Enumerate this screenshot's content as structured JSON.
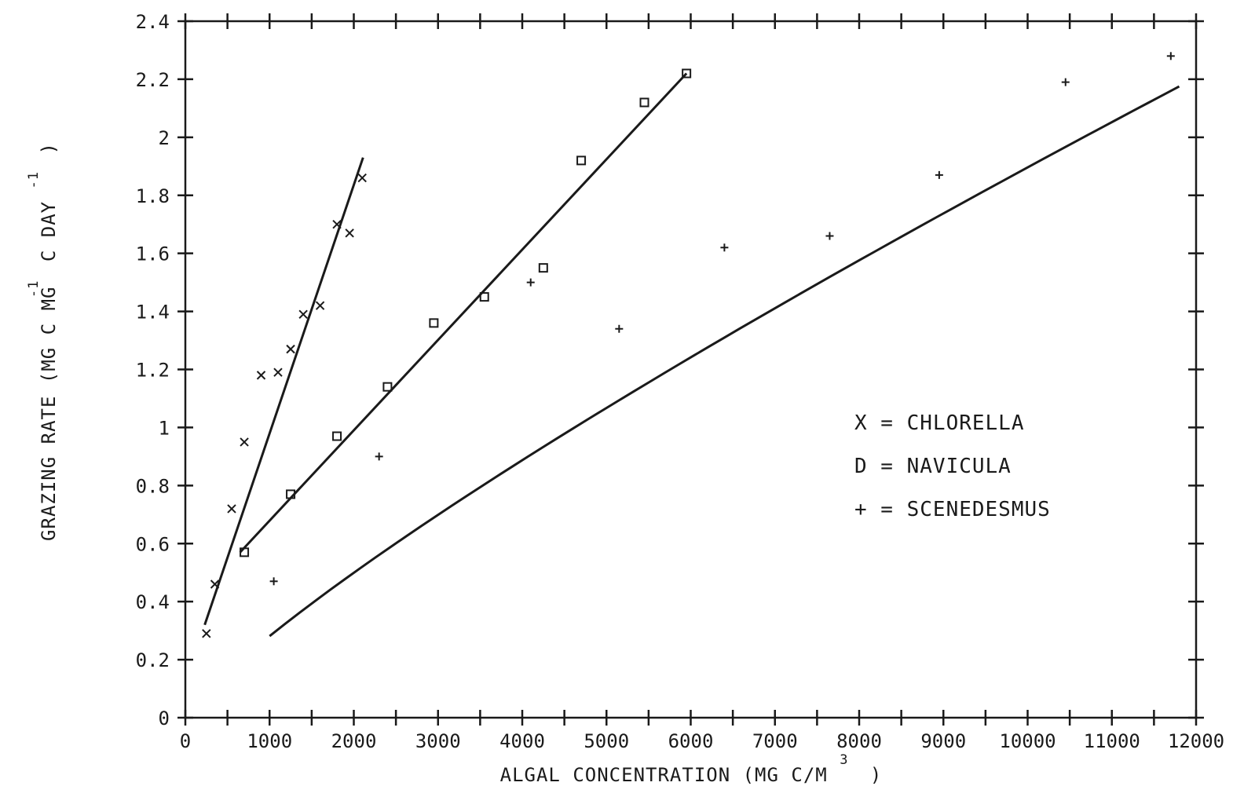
{
  "chart_data": {
    "type": "scatter",
    "xlabel": "ALGAL CONCENTRATION (MG C/M",
    "xlabel_sup": "3",
    "xlabel_end": ")",
    "ylabel": "GRAZING RATE (MG C MG",
    "ylabel_sup1": "-1",
    "ylabel_mid": "C DAY",
    "ylabel_sup2": "-1",
    "ylabel_end": ")",
    "xlim": [
      0,
      12000
    ],
    "ylim": [
      0,
      2.4
    ],
    "x_ticks": [
      0,
      1000,
      2000,
      3000,
      4000,
      5000,
      6000,
      7000,
      8000,
      9000,
      10000,
      11000,
      12000
    ],
    "x_tick_labels": [
      "0",
      "1000",
      "2000",
      "3000",
      "4000",
      "5000",
      "6000",
      "7000",
      "8000",
      "9000",
      "10000",
      "11000",
      "12000"
    ],
    "y_ticks": [
      0,
      0.2,
      0.4,
      0.6,
      0.8,
      1,
      1.2,
      1.4,
      1.6,
      1.8,
      2,
      2.2,
      2.4
    ],
    "y_tick_labels": [
      "0",
      "0.2",
      "0.4",
      "0.6",
      "0.8",
      "1",
      "1.2",
      "1.4",
      "1.6",
      "1.8",
      "2",
      "2.2",
      "2.4"
    ],
    "grid": false,
    "legend_position": "right-middle",
    "series": [
      {
        "name": "CHLORELLA",
        "marker": "x",
        "legend_label": "X = CHLORELLA",
        "points": [
          [
            250,
            0.29
          ],
          [
            350,
            0.46
          ],
          [
            550,
            0.72
          ],
          [
            700,
            0.95
          ],
          [
            900,
            1.18
          ],
          [
            1100,
            1.19
          ],
          [
            1250,
            1.27
          ],
          [
            1400,
            1.39
          ],
          [
            1600,
            1.42
          ],
          [
            1800,
            1.7
          ],
          [
            1950,
            1.67
          ],
          [
            2100,
            1.86
          ]
        ],
        "fit": [
          [
            230,
            0.32
          ],
          [
            2110,
            1.93
          ]
        ]
      },
      {
        "name": "NAVICULA",
        "marker": "square",
        "legend_label": "D = NAVICULA",
        "points": [
          [
            700,
            0.57
          ],
          [
            1250,
            0.77
          ],
          [
            1800,
            0.97
          ],
          [
            2400,
            1.14
          ],
          [
            2950,
            1.36
          ],
          [
            3550,
            1.45
          ],
          [
            4250,
            1.55
          ],
          [
            4700,
            1.92
          ],
          [
            5450,
            2.12
          ],
          [
            5950,
            2.22
          ]
        ],
        "fit": [
          [
            650,
            0.57
          ],
          [
            5950,
            2.22
          ]
        ]
      },
      {
        "name": "SCENEDESMUS",
        "marker": "plus",
        "legend_label": "+ = SCENEDESMUS",
        "points": [
          [
            1050,
            0.47
          ],
          [
            2300,
            0.9
          ],
          [
            4100,
            1.5
          ],
          [
            5150,
            1.34
          ],
          [
            6400,
            1.62
          ],
          [
            7650,
            1.66
          ],
          [
            8950,
            1.87
          ],
          [
            10450,
            2.19
          ],
          [
            11700,
            2.28
          ]
        ],
        "fit_power": {
          "a": 0.000916,
          "b": 0.829,
          "x_start": 1000,
          "x_end": 11800
        }
      }
    ]
  }
}
